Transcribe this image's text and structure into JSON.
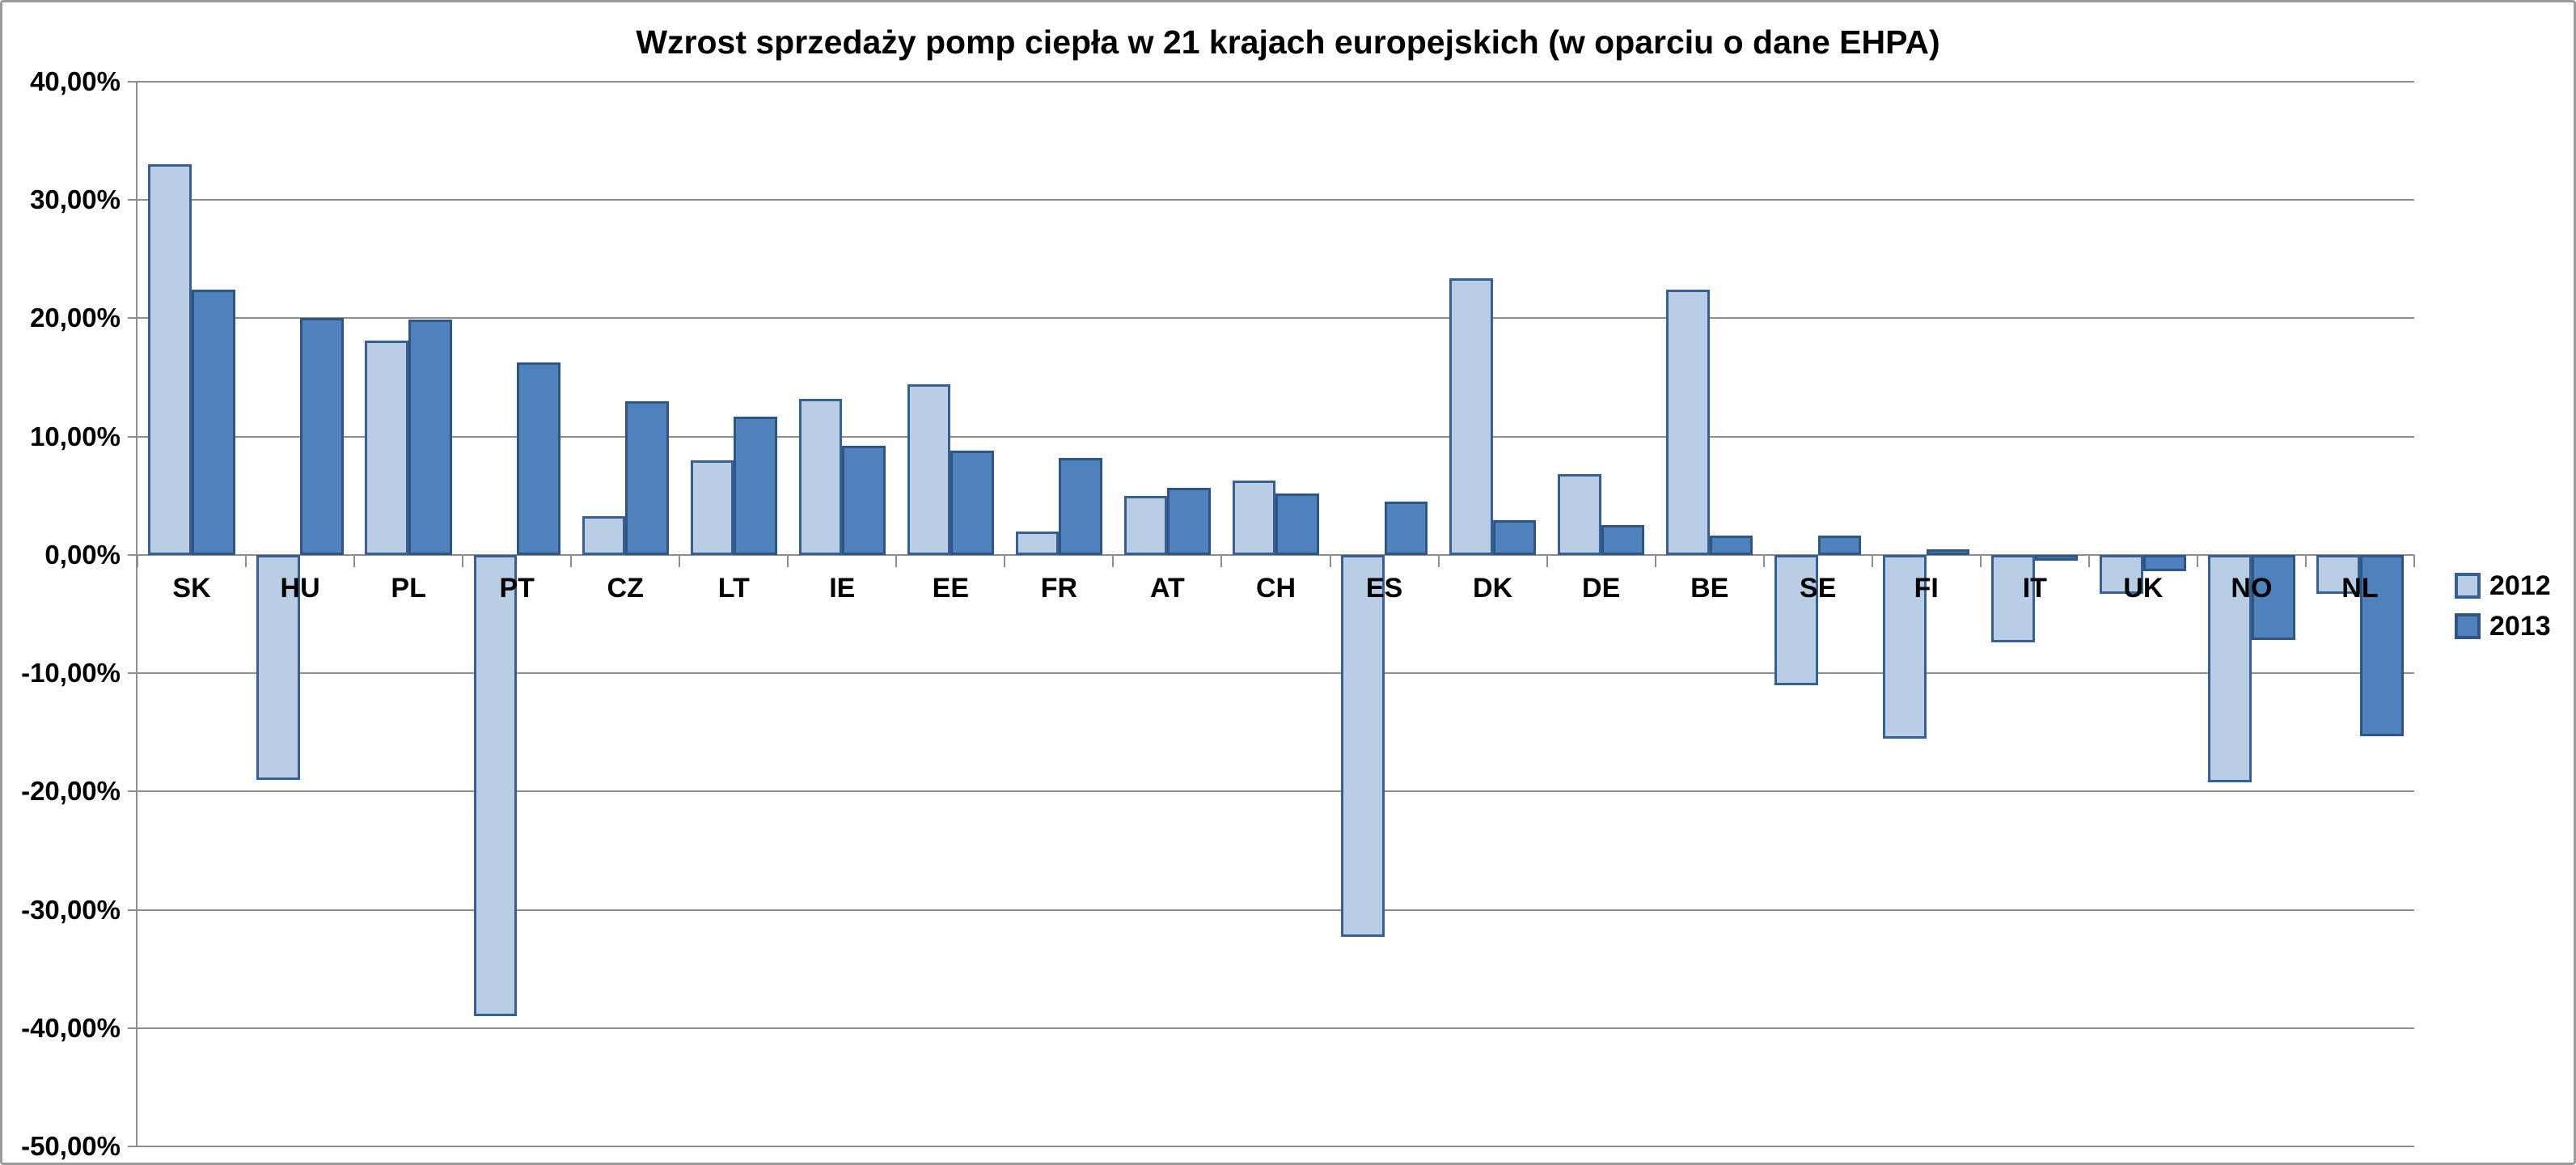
{
  "chart": {
    "title": "Wzrost sprzedaży pomp ciepła w 21 krajach europejskich (w oparciu o dane EHPA)"
  },
  "legend": {
    "items": [
      {
        "label": "2012"
      },
      {
        "label": "2013"
      }
    ]
  },
  "colors": {
    "series_2012_fill": "#b9cde5",
    "series_2012_border": "#376092",
    "series_2013_fill": "#4f81bd",
    "series_2013_border": "#2e5685",
    "gridline": "#8e8e8e",
    "axis": "#8e8e8e",
    "frame_border": "#9a9a9a",
    "text": "#000000"
  },
  "chart_data": {
    "type": "bar",
    "title": "Wzrost sprzedaży pomp ciepła w 21 krajach europejskich (w oparciu o dane EHPA)",
    "categories": [
      "SK",
      "HU",
      "PL",
      "PT",
      "CZ",
      "LT",
      "IE",
      "EE",
      "FR",
      "AT",
      "CH",
      "ES",
      "DK",
      "DE",
      "BE",
      "SE",
      "FI",
      "IT",
      "UK",
      "NO",
      "NL"
    ],
    "series": [
      {
        "name": "2012",
        "values": [
          33.0,
          -19.0,
          18.1,
          -39.0,
          3.3,
          8.0,
          13.2,
          14.4,
          2.0,
          5.0,
          6.3,
          -32.3,
          23.4,
          6.8,
          22.4,
          -11.0,
          -15.5,
          -7.4,
          -3.3,
          -19.2,
          -3.3
        ]
      },
      {
        "name": "2013",
        "values": [
          22.4,
          20.0,
          19.9,
          16.3,
          13.0,
          11.7,
          9.2,
          8.8,
          8.2,
          5.7,
          5.2,
          4.5,
          2.9,
          2.5,
          1.6,
          1.6,
          0.5,
          -0.5,
          -1.4,
          -7.2,
          -15.3
        ]
      }
    ],
    "ylim": [
      -50,
      40
    ],
    "y_tick_step": 10,
    "y_tick_labels": [
      "40,00%",
      "30,00%",
      "20,00%",
      "10,00%",
      "0,00%",
      "-10,00%",
      "-20,00%",
      "-30,00%",
      "-40,00%",
      "-50,00%"
    ],
    "value_format": "percent_comma_decimal",
    "grid": true,
    "legend_position": "right",
    "xlabel": "",
    "ylabel": ""
  }
}
